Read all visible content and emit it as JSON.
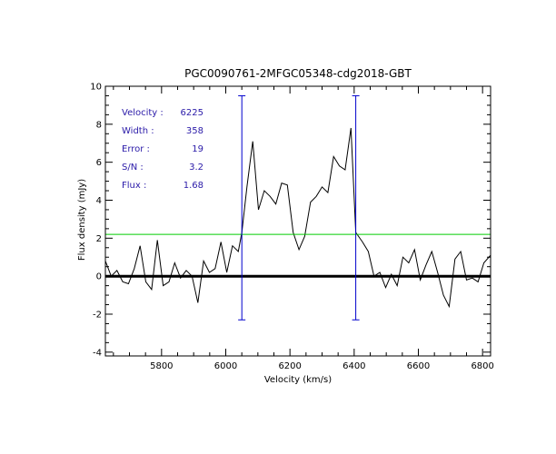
{
  "chart_data": {
    "type": "line",
    "title": "PGC0090761-2MFGC05348-cdg2018-GBT",
    "xlabel": "Velocity (km/s)",
    "ylabel": "Flux density (mJy)",
    "xlim": [
      5625,
      6825
    ],
    "ylim": [
      -4.2,
      10
    ],
    "xticks": [
      5800,
      6000,
      6200,
      6400,
      6600,
      6800
    ],
    "yticks": [
      -4,
      -2,
      0,
      2,
      4,
      6,
      8,
      10
    ],
    "grid": false,
    "series": [
      {
        "style": "spectrum",
        "color": "#000000",
        "x": [
          5625,
          5643,
          5661,
          5679,
          5697,
          5715,
          5733,
          5751,
          5769,
          5787,
          5805,
          5823,
          5841,
          5859,
          5877,
          5895,
          5913,
          5931,
          5949,
          5967,
          5985,
          6003,
          6021,
          6039,
          6050,
          6066,
          6084,
          6102,
          6120,
          6138,
          6156,
          6174,
          6192,
          6210,
          6228,
          6246,
          6264,
          6282,
          6300,
          6318,
          6336,
          6354,
          6372,
          6390,
          6405,
          6426,
          6444,
          6462,
          6480,
          6498,
          6516,
          6534,
          6552,
          6570,
          6588,
          6606,
          6624,
          6642,
          6660,
          6678,
          6696,
          6714,
          6732,
          6750,
          6768,
          6786,
          6804,
          6825
        ],
        "y": [
          0.8,
          0,
          0.3,
          -0.3,
          -0.4,
          0.4,
          1.6,
          -0.3,
          -0.7,
          1.9,
          -0.5,
          -0.3,
          0.7,
          -0.1,
          0.3,
          0,
          -1.4,
          0.8,
          0.2,
          0.4,
          1.8,
          0.2,
          1.6,
          1.3,
          2.3,
          4.7,
          7.1,
          3.5,
          4.5,
          4.2,
          3.8,
          4.9,
          4.8,
          2.3,
          1.4,
          2.1,
          3.9,
          4.2,
          4.7,
          4.4,
          6.3,
          5.8,
          5.6,
          7.8,
          2.3,
          1.8,
          1.3,
          0,
          0.2,
          -0.6,
          0.1,
          -0.5,
          1,
          0.7,
          1.4,
          -0.2,
          0.6,
          1.3,
          0.2,
          -1,
          -1.6,
          0.9,
          1.3,
          -0.2,
          -0.1,
          -0.3,
          0.7,
          1.1
        ]
      },
      {
        "style": "baseline",
        "color": "#000000",
        "x": [
          5625,
          6825
        ],
        "y": [
          0,
          0
        ]
      },
      {
        "style": "level",
        "color": "#00cc00",
        "x": [
          5625,
          6825
        ],
        "y": [
          2.2,
          2.2
        ]
      },
      {
        "style": "marker",
        "color": "#0000cc",
        "x": [
          6050,
          6050
        ],
        "y": [
          -2.3,
          9.5
        ]
      },
      {
        "style": "marker",
        "color": "#0000cc",
        "x": [
          6405,
          6405
        ],
        "y": [
          -2.3,
          9.5
        ]
      }
    ],
    "annotations": [
      {
        "label": "Velocity :",
        "value": "6225"
      },
      {
        "label": "Width :",
        "value": "358"
      },
      {
        "label": "Error :",
        "value": "19"
      },
      {
        "label": "S/N :",
        "value": "3.2"
      },
      {
        "label": "Flux :",
        "value": "1.68"
      }
    ],
    "annotation_color": "#2a1aa8"
  }
}
